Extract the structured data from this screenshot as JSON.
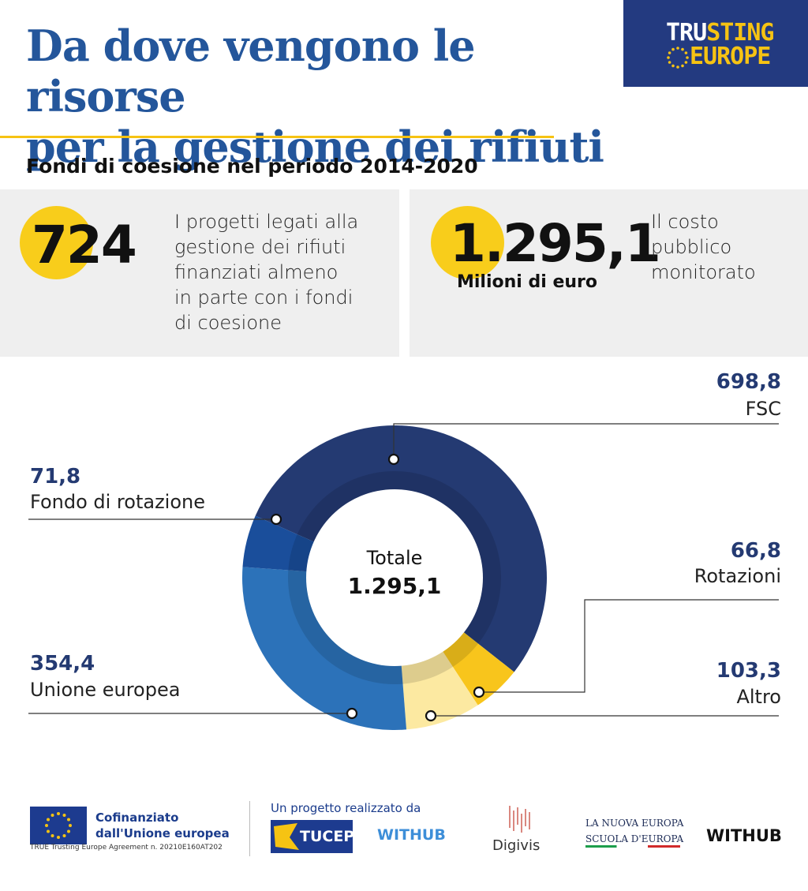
{
  "header": {
    "title_line1": "Da dove vengono le risorse",
    "title_line2": "per la gestione dei rifiuti",
    "brand_top_white": "TRU",
    "brand_top_yellow": "STING",
    "brand_bottom": "EUROPE",
    "subtitle": "Fondi di coesione nel periodo 2014-2020"
  },
  "cards": {
    "projects": {
      "value": "724",
      "description_lines": [
        "I progetti legati alla",
        "gestione dei rifiuti",
        "finanziati almeno",
        "in parte con i fondi",
        "di coesione"
      ]
    },
    "cost": {
      "value": "1.295,1",
      "unit": "Milioni di euro",
      "description_lines": [
        "Il costo",
        "pubblico",
        "monitorato"
      ]
    }
  },
  "chart_data": {
    "type": "pie",
    "title": "",
    "center_label": "Totale",
    "center_value": "1.295,1",
    "series": [
      {
        "name": "FSC",
        "label": "698,8",
        "value": 698.8,
        "color": "#243a72"
      },
      {
        "name": "Rotazioni",
        "label": "66,8",
        "value": 66.8,
        "color": "#f8c51c"
      },
      {
        "name": "Altro",
        "label": "103,3",
        "value": 103.3,
        "color": "#fce9a1"
      },
      {
        "name": "Unione europea",
        "label": "354,4",
        "value": 354.4,
        "color": "#2c72b9"
      },
      {
        "name": "Fondo di rotazione",
        "label": "71,8",
        "value": 71.8,
        "color": "#1a4e9b"
      }
    ]
  },
  "footer": {
    "eu_line1": "Cofinanziato",
    "eu_line2": "dall'Unione europea",
    "eu_agreement": "TRUE Trusting Europe Agreement n. 20210E160AT202",
    "partner_intro": "Un progetto realizzato da",
    "tucep": "TUCEP",
    "withub": "WITHUB",
    "digivis": "Digivis",
    "nuova_europa_line1": "LA NUOVA EUROPA",
    "nuova_europa_line2": "SCUOLA D'EUROPA",
    "withub_black": "WITHUB"
  }
}
